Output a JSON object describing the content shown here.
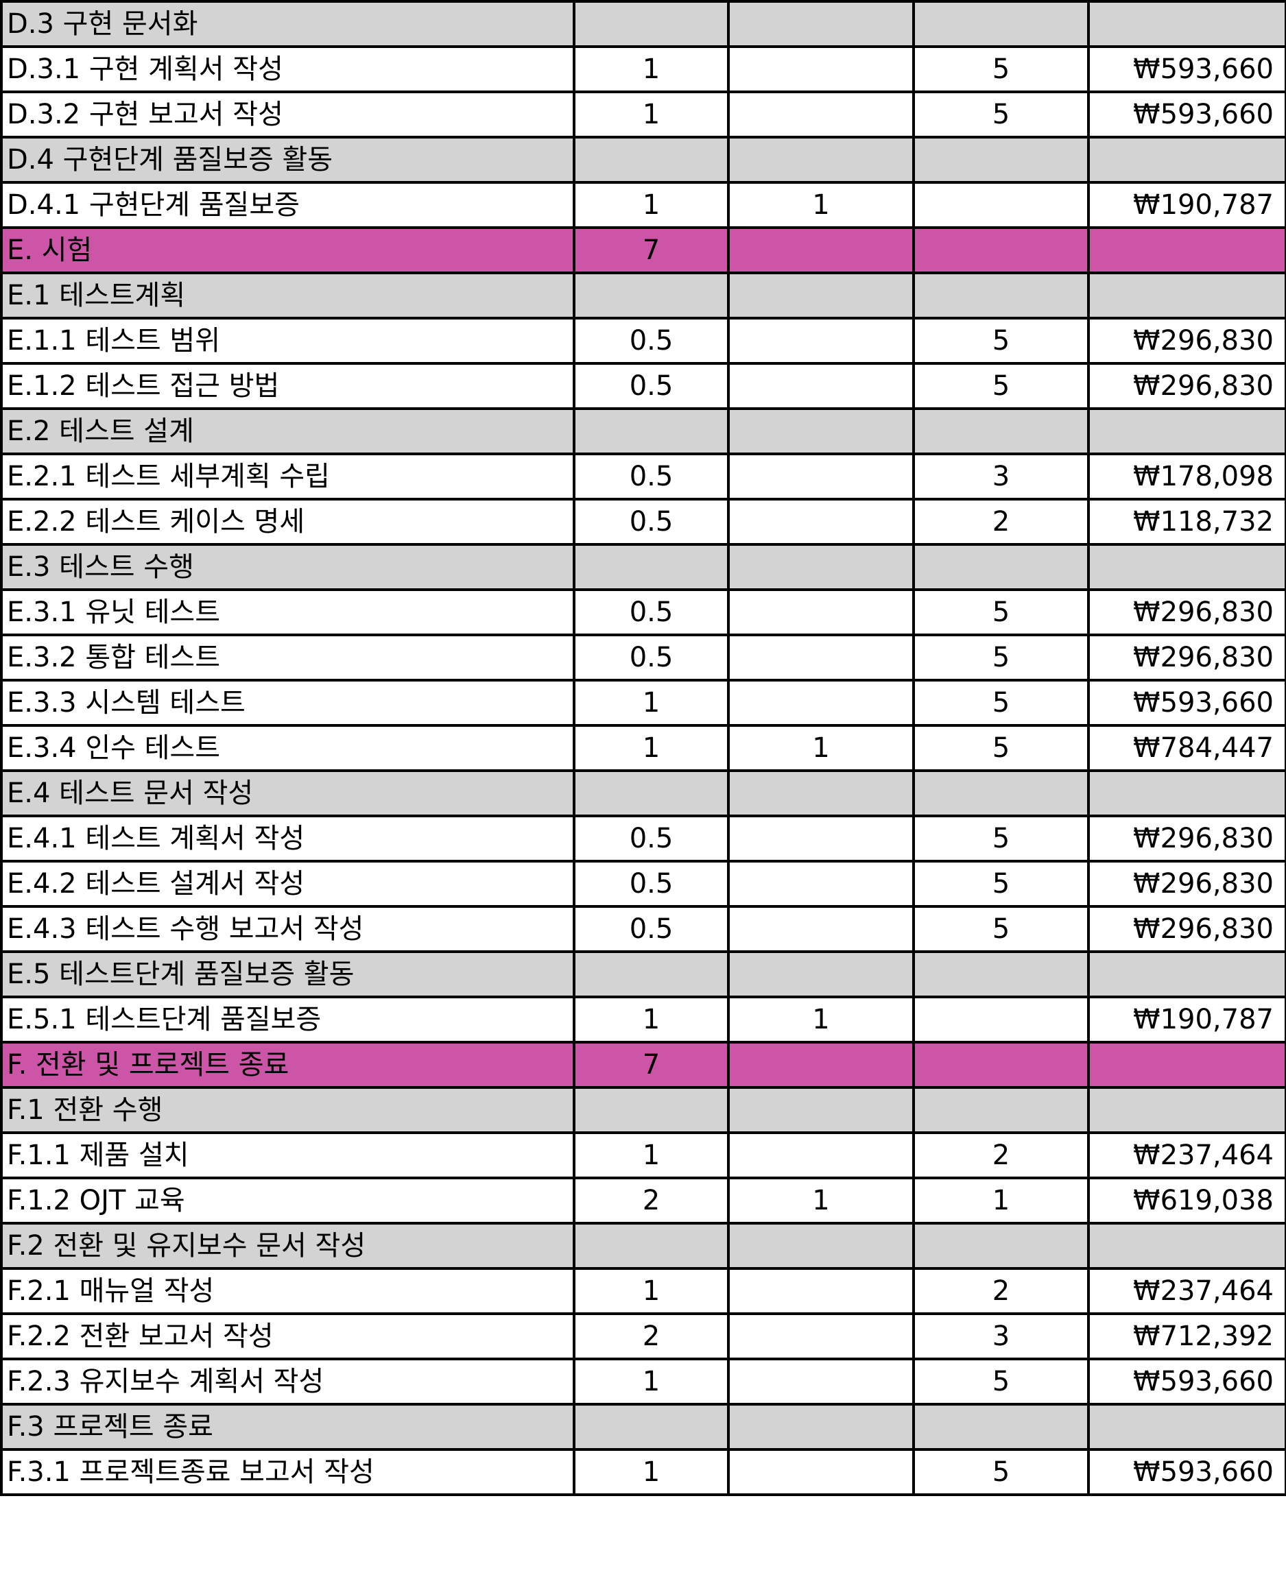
{
  "rows": [
    {
      "type": "group",
      "name": "D.3 구현 문서화",
      "a": "",
      "b": "",
      "c": "",
      "cost": ""
    },
    {
      "type": "task",
      "name": "D.3.1 구현 계획서 작성",
      "a": "1",
      "b": "",
      "c": "5",
      "cost": "₩593,660"
    },
    {
      "type": "task",
      "name": "D.3.2 구현 보고서 작성",
      "a": "1",
      "b": "",
      "c": "5",
      "cost": "₩593,660"
    },
    {
      "type": "group",
      "name": "D.4 구현단계 품질보증 활동",
      "a": "",
      "b": "",
      "c": "",
      "cost": ""
    },
    {
      "type": "task",
      "name": "D.4.1 구현단계 품질보증",
      "a": "1",
      "b": "1",
      "c": "",
      "cost": "₩190,787"
    },
    {
      "type": "phase",
      "name": "E. 시험",
      "a": "7",
      "b": "",
      "c": "",
      "cost": ""
    },
    {
      "type": "group",
      "name": "E.1 테스트계획",
      "a": "",
      "b": "",
      "c": "",
      "cost": ""
    },
    {
      "type": "task",
      "name": "E.1.1 테스트 범위",
      "a": "0.5",
      "b": "",
      "c": "5",
      "cost": "₩296,830"
    },
    {
      "type": "task",
      "name": "E.1.2 테스트 접근 방법",
      "a": "0.5",
      "b": "",
      "c": "5",
      "cost": "₩296,830"
    },
    {
      "type": "group",
      "name": "E.2 테스트 설계",
      "a": "",
      "b": "",
      "c": "",
      "cost": ""
    },
    {
      "type": "task",
      "name": "E.2.1 테스트 세부계획 수립",
      "a": "0.5",
      "b": "",
      "c": "3",
      "cost": "₩178,098"
    },
    {
      "type": "task",
      "name": "E.2.2 테스트 케이스 명세",
      "a": "0.5",
      "b": "",
      "c": "2",
      "cost": "₩118,732"
    },
    {
      "type": "group",
      "name": "E.3 테스트 수행",
      "a": "",
      "b": "",
      "c": "",
      "cost": ""
    },
    {
      "type": "task",
      "name": "E.3.1 유닛 테스트",
      "a": "0.5",
      "b": "",
      "c": "5",
      "cost": "₩296,830"
    },
    {
      "type": "task",
      "name": "E.3.2 통합 테스트",
      "a": "0.5",
      "b": "",
      "c": "5",
      "cost": "₩296,830"
    },
    {
      "type": "task",
      "name": "E.3.3 시스템 테스트",
      "a": "1",
      "b": "",
      "c": "5",
      "cost": "₩593,660"
    },
    {
      "type": "task",
      "name": "E.3.4 인수 테스트",
      "a": "1",
      "b": "1",
      "c": "5",
      "cost": "₩784,447"
    },
    {
      "type": "group",
      "name": "E.4 테스트 문서 작성",
      "a": "",
      "b": "",
      "c": "",
      "cost": ""
    },
    {
      "type": "task",
      "name": "E.4.1 테스트 계획서 작성",
      "a": "0.5",
      "b": "",
      "c": "5",
      "cost": "₩296,830"
    },
    {
      "type": "task",
      "name": "E.4.2 테스트 설계서 작성",
      "a": "0.5",
      "b": "",
      "c": "5",
      "cost": "₩296,830"
    },
    {
      "type": "task",
      "name": "E.4.3 테스트 수행 보고서 작성",
      "a": "0.5",
      "b": "",
      "c": "5",
      "cost": "₩296,830"
    },
    {
      "type": "group",
      "name": "E.5 테스트단계 품질보증 활동",
      "a": "",
      "b": "",
      "c": "",
      "cost": ""
    },
    {
      "type": "task",
      "name": "E.5.1 테스트단계 품질보증",
      "a": "1",
      "b": "1",
      "c": "",
      "cost": "₩190,787"
    },
    {
      "type": "phase",
      "name": "F. 전환 및 프로젝트 종료",
      "a": "7",
      "b": "",
      "c": "",
      "cost": ""
    },
    {
      "type": "group",
      "name": "F.1 전환 수행",
      "a": "",
      "b": "",
      "c": "",
      "cost": ""
    },
    {
      "type": "task",
      "name": "F.1.1 제품 설치",
      "a": "1",
      "b": "",
      "c": "2",
      "cost": "₩237,464"
    },
    {
      "type": "task",
      "name": "F.1.2 OJT 교육",
      "a": "2",
      "b": "1",
      "c": "1",
      "cost": "₩619,038"
    },
    {
      "type": "group",
      "name": "F.2 전환 및 유지보수 문서 작성",
      "a": "",
      "b": "",
      "c": "",
      "cost": ""
    },
    {
      "type": "task",
      "name": "F.2.1 매뉴얼 작성",
      "a": "1",
      "b": "",
      "c": "2",
      "cost": "₩237,464"
    },
    {
      "type": "task",
      "name": "F.2.2 전환 보고서 작성",
      "a": "2",
      "b": "",
      "c": "3",
      "cost": "₩712,392"
    },
    {
      "type": "task",
      "name": "F.2.3 유지보수 계획서 작성",
      "a": "1",
      "b": "",
      "c": "5",
      "cost": "₩593,660"
    },
    {
      "type": "group",
      "name": "F.3 프로젝트 종료",
      "a": "",
      "b": "",
      "c": "",
      "cost": ""
    },
    {
      "type": "task",
      "name": "F.3.1 프로젝트종료 보고서 작성",
      "a": "1",
      "b": "",
      "c": "5",
      "cost": "₩593,660"
    }
  ],
  "colors": {
    "group_row": "#d3d3d3",
    "phase_row": "#cc55a8",
    "task_row": "#ffffff",
    "border": "#000000"
  }
}
